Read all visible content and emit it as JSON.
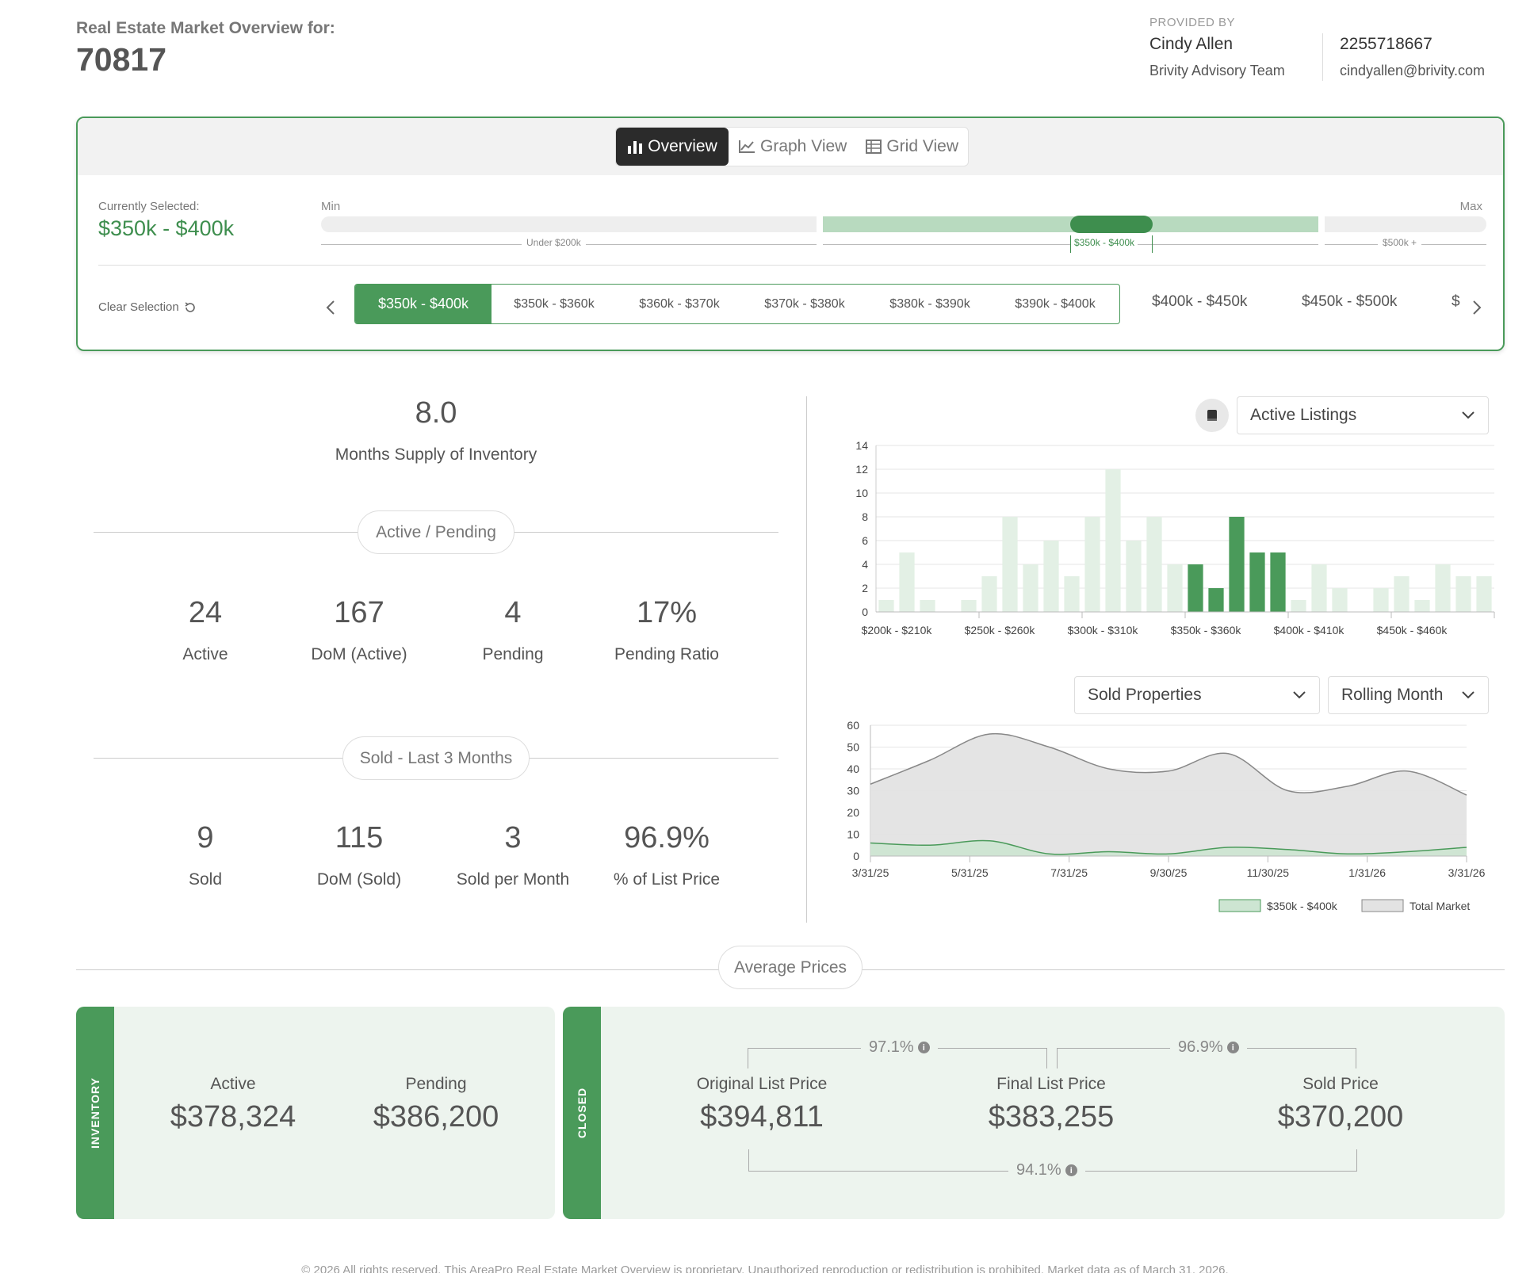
{
  "header": {
    "label": "Real Estate Market Overview for:",
    "zip": "70817",
    "provided_by_label": "PROVIDED BY",
    "agent_name": "Cindy Allen",
    "agent_team": "Brivity Advisory Team",
    "agent_phone": "2255718667",
    "agent_email": "cindyallen@brivity.com"
  },
  "view_tabs": [
    {
      "label": "Overview",
      "icon": "bar-chart-icon",
      "active": true
    },
    {
      "label": "Graph View",
      "icon": "line-chart-icon",
      "active": false
    },
    {
      "label": "Grid View",
      "icon": "grid-icon",
      "active": false
    }
  ],
  "selector": {
    "currently_selected_label": "Currently Selected:",
    "currently_selected_value": "$350k - $400k",
    "min_label": "Min",
    "max_label": "Max",
    "segments": [
      "Under $200k",
      "$350k - $400k",
      "$500k +"
    ],
    "clear_label": "Clear Selection",
    "selected_range": "$350k - $400k",
    "sub_ranges": [
      "$350k - $360k",
      "$360k - $370k",
      "$370k - $380k",
      "$380k - $390k",
      "$390k - $400k"
    ],
    "other_ranges": [
      "$400k - $450k",
      "$450k - $500k",
      "$"
    ]
  },
  "inventory": {
    "months_supply_value": "8.0",
    "months_supply_label": "Months Supply of Inventory",
    "active_pending_title": "Active / Pending",
    "active_pending": [
      {
        "value": "24",
        "label": "Active"
      },
      {
        "value": "167",
        "label": "DoM (Active)"
      },
      {
        "value": "4",
        "label": "Pending"
      },
      {
        "value": "17%",
        "label": "Pending Ratio"
      }
    ],
    "sold_title": "Sold - Last 3 Months",
    "sold": [
      {
        "value": "9",
        "label": "Sold"
      },
      {
        "value": "115",
        "label": "DoM (Sold)"
      },
      {
        "value": "3",
        "label": "Sold per Month"
      },
      {
        "value": "96.9%",
        "label": "% of List Price"
      }
    ]
  },
  "charts_controls": {
    "listings_dropdown": "Active Listings",
    "sold_dropdown": "Sold Properties",
    "period_dropdown": "Rolling Month"
  },
  "chart_data": [
    {
      "type": "bar",
      "ylim": [
        0,
        14
      ],
      "yticks": [
        0,
        2,
        4,
        6,
        8,
        10,
        12,
        14
      ],
      "tick_labels": [
        "$200k - $210k",
        "$250k - $260k",
        "$300k - $310k",
        "$350k - $360k",
        "$400k - $410k",
        "$450k - $460k"
      ],
      "values": [
        1,
        5,
        1,
        0,
        1,
        3,
        8,
        4,
        6,
        3,
        8,
        12,
        6,
        8,
        4,
        4,
        2,
        8,
        5,
        5,
        1,
        4,
        2,
        0,
        2,
        3,
        1,
        4,
        3,
        3
      ],
      "highlight_range": [
        15,
        19
      ],
      "colors": {
        "base": "#e3f0e5",
        "highlight": "#4a9a5a"
      },
      "grid": true
    },
    {
      "type": "area",
      "ylim": [
        0,
        60
      ],
      "yticks": [
        0,
        10,
        20,
        30,
        40,
        50,
        60
      ],
      "x_labels": [
        "3/31/25",
        "5/31/25",
        "7/31/25",
        "9/30/25",
        "11/30/25",
        "1/31/26",
        "3/31/26"
      ],
      "series": [
        {
          "name": "Total Market",
          "values": [
            33,
            44,
            56,
            50,
            40,
            39,
            47,
            30,
            32,
            39,
            28
          ],
          "color": "#e3e3e3"
        },
        {
          "name": "$350k - $400k",
          "values": [
            6,
            5,
            7,
            1,
            2,
            1,
            4,
            3,
            1,
            2,
            4
          ],
          "color": "#cde5d2"
        }
      ],
      "legend": "bottom-right",
      "grid": true
    }
  ],
  "average_prices": {
    "title": "Average Prices",
    "inventory_tag": "INVENTORY",
    "closed_tag": "CLOSED",
    "active_label": "Active",
    "active_value": "$378,324",
    "pending_label": "Pending",
    "pending_value": "$386,200",
    "orig_label": "Original List Price",
    "orig_value": "$394,811",
    "final_label": "Final List Price",
    "final_value": "$383,255",
    "sold_label": "Sold Price",
    "sold_value": "$370,200",
    "pct_orig_final": "97.1%",
    "pct_final_sold": "96.9%",
    "pct_orig_sold": "94.1%"
  },
  "footer": "© 2026 All rights reserved. This AreaPro Real Estate Market Overview is proprietary. Unauthorized reproduction or redistribution is prohibited. Market data as of March 31, 2026."
}
